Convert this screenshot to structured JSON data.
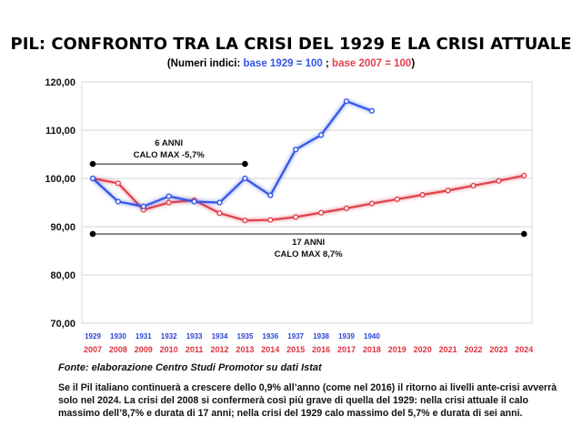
{
  "title": "PIL: CONFRONTO TRA LA CRISI DEL 1929 E LA CRISI ATTUALE",
  "subtitle": {
    "open": "(Numeri indici: ",
    "blue": "base 1929 = 100",
    "sep": " ; ",
    "red": "base 2007 = 100",
    "close": ")"
  },
  "source": "Fonte: elaborazione Centro Studi Promotor su dati Istat",
  "note": "Se il Pil italiano continuerà a crescere dello 0,9% all’anno (come nel 2016) il ritorno ai livelli ante-crisi avverrà solo nel 2024. La crisi del 2008 si confermerà così più grave di quella del 1929: nella crisi attuale il calo massimo dell’8,7% e durata di 17 anni; nella crisi del 1929 calo massimo del 5,7% e durata di sei anni.",
  "chart_data": {
    "type": "line",
    "ylim": [
      70,
      120
    ],
    "yticks": [
      "70,00",
      "80,00",
      "90,00",
      "100,00",
      "110,00",
      "120,00"
    ],
    "ytick_values": [
      70,
      80,
      90,
      100,
      110,
      120
    ],
    "grid": "horizontal",
    "x_blue": [
      "1929",
      "1930",
      "1931",
      "1932",
      "1933",
      "1934",
      "1935",
      "1936",
      "1937",
      "1938",
      "1939",
      "1940"
    ],
    "x_red": [
      "2007",
      "2008",
      "2009",
      "2010",
      "2011",
      "2012",
      "2013",
      "2014",
      "2015",
      "2016",
      "2017",
      "2018",
      "2019",
      "2020",
      "2021",
      "2022",
      "2023",
      "2024"
    ],
    "series": [
      {
        "values": [
          100,
          95.2,
          94.2,
          96.3,
          95.2,
          95.0,
          100.0,
          96.5,
          106.0,
          109.0,
          116.0,
          114.0
        ],
        "color": "#3355e8"
      },
      {
        "values": [
          100,
          99.0,
          93.5,
          95.0,
          95.5,
          92.8,
          91.3,
          91.4,
          92.0,
          92.9,
          93.8,
          94.8,
          95.7,
          96.6,
          97.5,
          98.5,
          99.5,
          100.6
        ],
        "color": "#e0414c"
      }
    ],
    "annotations": [
      {
        "line1": "6 ANNI",
        "line2": "CALO MAX -5,7%",
        "start": 0,
        "end": 6,
        "y": 103
      },
      {
        "line1": "17 ANNI",
        "line2": "CALO MAX 8,7%",
        "start": 0,
        "end": 17,
        "y": 88.5
      }
    ]
  }
}
